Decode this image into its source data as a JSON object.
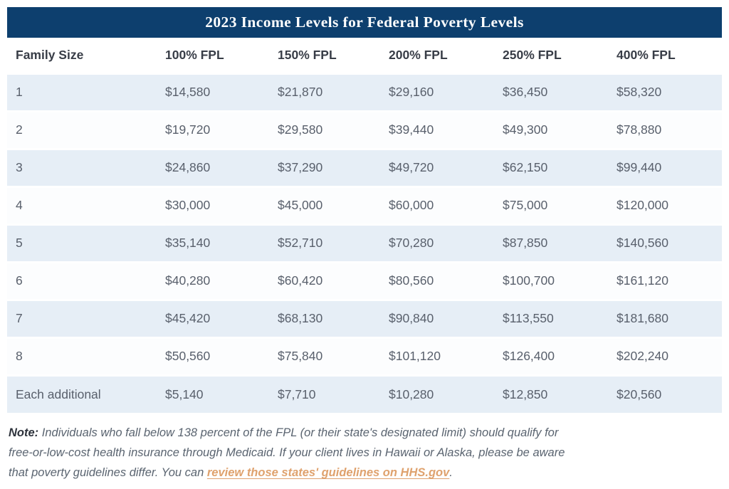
{
  "chart_data": {
    "type": "table",
    "title": "2023 Income Levels for Federal Poverty Levels",
    "columns": [
      "Family Size",
      "100% FPL",
      "150% FPL",
      "200% FPL",
      "250% FPL",
      "400% FPL"
    ],
    "rows": [
      [
        "1",
        "$14,580",
        "$21,870",
        "$29,160",
        "$36,450",
        "$58,320"
      ],
      [
        "2",
        "$19,720",
        "$29,580",
        "$39,440",
        "$49,300",
        "$78,880"
      ],
      [
        "3",
        "$24,860",
        "$37,290",
        "$49,720",
        "$62,150",
        "$99,440"
      ],
      [
        "4",
        "$30,000",
        "$45,000",
        "$60,000",
        "$75,000",
        "$120,000"
      ],
      [
        "5",
        "$35,140",
        "$52,710",
        "$70,280",
        "$87,850",
        "$140,560"
      ],
      [
        "6",
        "$40,280",
        "$60,420",
        "$80,560",
        "$100,700",
        "$161,120"
      ],
      [
        "7",
        "$45,420",
        "$68,130",
        "$90,840",
        "$113,550",
        "$181,680"
      ],
      [
        "8",
        "$50,560",
        "$75,840",
        "$101,120",
        "$126,400",
        "$202,240"
      ],
      [
        "Each additional",
        "$5,140",
        "$7,710",
        "$10,280",
        "$12,850",
        "$20,560"
      ]
    ],
    "layout_hints": {
      "stripe_pattern": "odd data rows light blue, even rows white",
      "title_position": "centered in navy bar above header row"
    }
  },
  "note": {
    "label": "Note:",
    "line1": "Individuals who fall below 138 percent of the FPL (or their state's designated limit) should qualify for",
    "line2": "free-or-low-cost health insurance through Medicaid. If your client lives in Hawaii or Alaska, please be aware",
    "line3_prefix": "that poverty guidelines differ. You can ",
    "link_text": "review those states' guidelines on HHS.gov",
    "suffix": "."
  },
  "colors": {
    "header_bg": "#0d3f6e",
    "title_color": "#ffffff",
    "row_alt_bg": "#e6eef6",
    "row_bg": "#fcfdfe",
    "col_header_color": "#383d47",
    "cell_color": "#59606c",
    "note_color": "#5a6470",
    "note_label_color": "#2e333c",
    "link_color": "#dfa26e",
    "page_bg": "#ffffff"
  }
}
